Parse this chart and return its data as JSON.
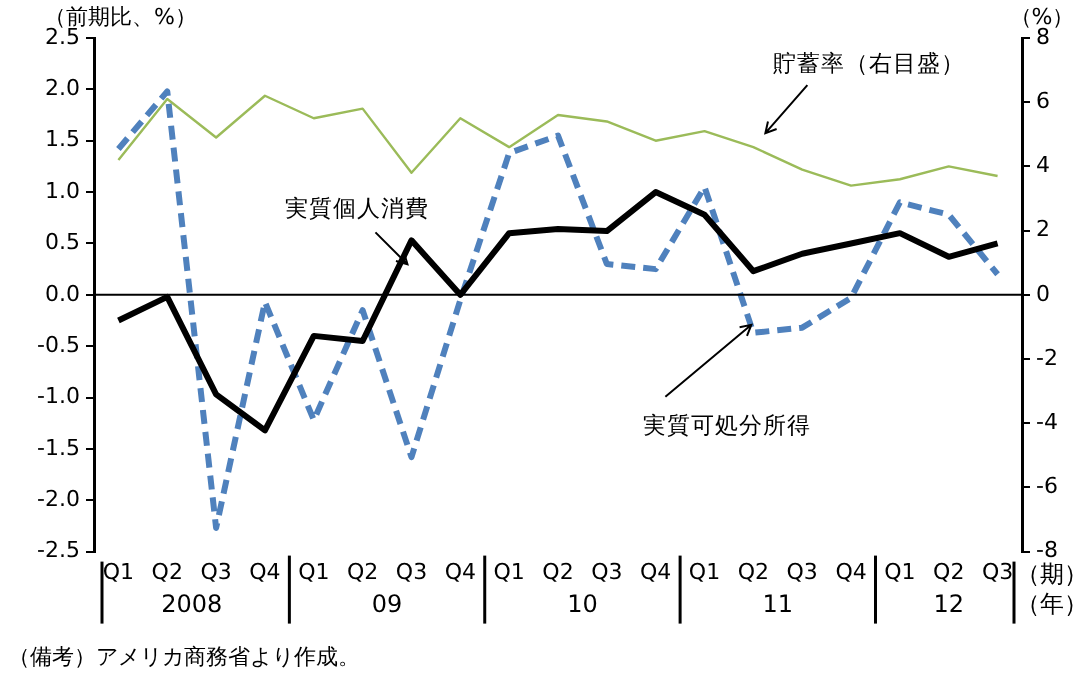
{
  "chart_data": {
    "type": "line",
    "ylabel": "（前期比、%）",
    "y2label": "（%）",
    "categories": [
      "Q1",
      "Q2",
      "Q3",
      "Q4",
      "Q1",
      "Q2",
      "Q3",
      "Q4",
      "Q1",
      "Q2",
      "Q3",
      "Q4",
      "Q1",
      "Q2",
      "Q3",
      "Q4",
      "Q1",
      "Q2",
      "Q3"
    ],
    "series": [
      {
        "name": "実質個人消費",
        "color": "#000000",
        "line_style": "solid",
        "values": [
          -0.25,
          -0.02,
          -0.97,
          -1.32,
          -0.4,
          -0.45,
          0.53,
          0.0,
          0.6,
          0.64,
          0.62,
          1.0,
          0.78,
          0.23,
          0.4,
          0.5,
          0.6,
          0.37,
          0.5
        ]
      },
      {
        "name": "実質可処分所得",
        "color": "#4f81bd",
        "line_style": "dashed",
        "values": [
          1.42,
          1.98,
          -2.27,
          -0.07,
          -1.22,
          -0.15,
          -1.58,
          -0.05,
          1.38,
          1.55,
          0.3,
          0.25,
          1.05,
          -0.37,
          -0.32,
          -0.03,
          0.9,
          0.78,
          0.2
        ]
      },
      {
        "name": "貯蓄率（右目盛）",
        "color": "#9bbb59",
        "line_style": "solid",
        "axis": "y2",
        "values": [
          4.2,
          6.1,
          4.9,
          6.2,
          5.5,
          5.8,
          3.8,
          5.5,
          4.6,
          5.6,
          5.4,
          4.8,
          5.1,
          4.6,
          3.9,
          3.4,
          3.6,
          4.0,
          3.7
        ]
      }
    ],
    "ylim": [
      -2.5,
      2.5
    ],
    "yticks": [
      {
        "value": -2.5,
        "label": "-2.5"
      },
      {
        "value": -2,
        "label": "-2.0"
      },
      {
        "value": -1.5,
        "label": "-1.5"
      },
      {
        "value": -1,
        "label": "-1.0"
      },
      {
        "value": -0.5,
        "label": "-0.5"
      },
      {
        "value": 0,
        "label": "0.0"
      },
      {
        "value": 0.5,
        "label": "0.5"
      },
      {
        "value": 1,
        "label": "1.0"
      },
      {
        "value": 1.5,
        "label": "1.5"
      },
      {
        "value": 2,
        "label": "2.0"
      },
      {
        "value": 2.5,
        "label": "2.5"
      }
    ],
    "y2lim": [
      -8,
      8
    ],
    "y2ticks": [
      -8,
      -6,
      -4,
      -2,
      0,
      2,
      4,
      6,
      8
    ],
    "ref_lines": [
      {
        "axis": "y",
        "value": 0,
        "color": "#000000"
      }
    ],
    "annotations": [
      "（備考）アメリカ商務省より作成。",
      "2008",
      "09",
      "10",
      "11",
      "12",
      "（期）",
      "（年）"
    ],
    "grid": false,
    "legend": false,
    "marker": "none"
  }
}
